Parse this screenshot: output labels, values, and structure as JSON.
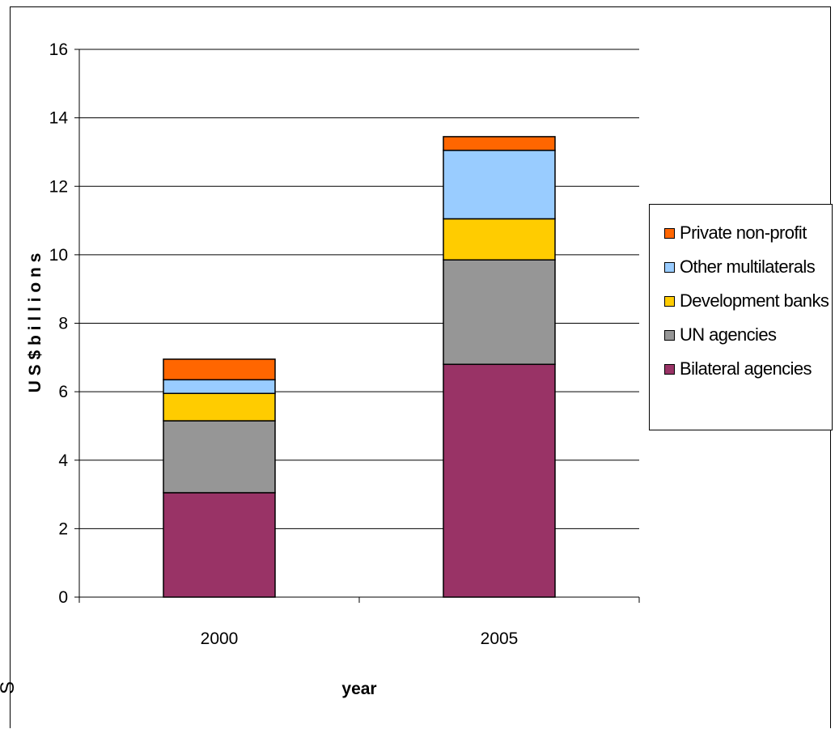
{
  "chart_data": {
    "type": "bar",
    "stacked": true,
    "categories": [
      "2000",
      "2005"
    ],
    "series": [
      {
        "name": "Bilateral agencies",
        "color": "#993366",
        "values": [
          3.05,
          6.8
        ]
      },
      {
        "name": "UN agencies",
        "color": "#969696",
        "values": [
          2.1,
          3.05
        ]
      },
      {
        "name": "Development banks",
        "color": "#FFCC00",
        "values": [
          0.8,
          1.2
        ]
      },
      {
        "name": "Other multilaterals",
        "color": "#99CCFF",
        "values": [
          0.4,
          2.0
        ]
      },
      {
        "name": "Private non-profit",
        "color": "#FF6600",
        "values": [
          0.6,
          0.4
        ]
      }
    ],
    "xlabel": "year",
    "ylabel": "U S $ b i l l i o n s",
    "ylim": [
      0,
      16
    ],
    "yticks": [
      "0",
      "2",
      "4",
      "6",
      "8",
      "10",
      "12",
      "14",
      "16"
    ],
    "grid": true,
    "legend_position": "right",
    "legend_order": [
      "Private non-profit",
      "Other multilaterals",
      "Development banks",
      "UN agencies",
      "Bilateral agencies"
    ]
  },
  "edge_glyph": "S"
}
